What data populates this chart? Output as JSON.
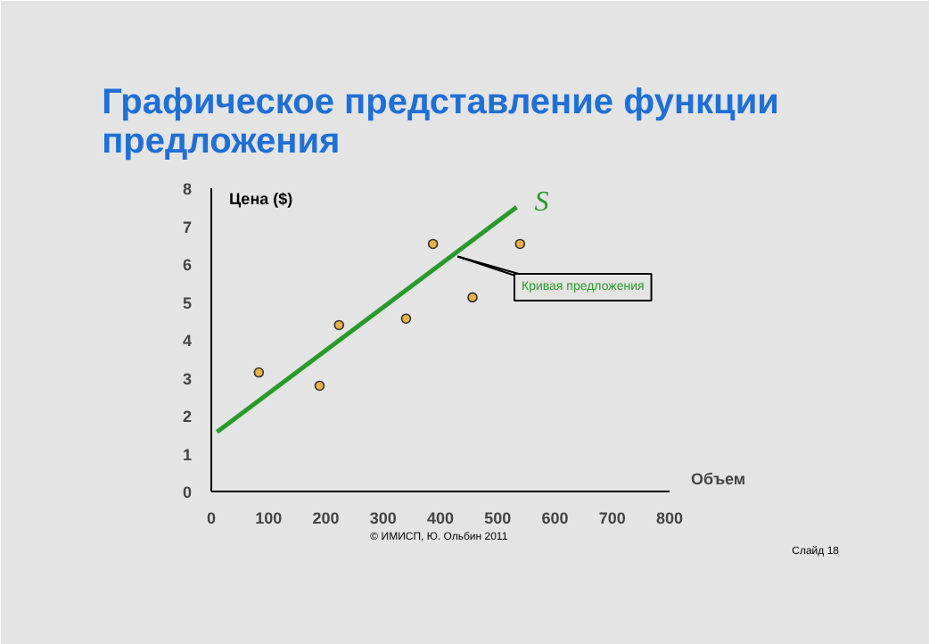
{
  "chart_data": {
    "type": "scatter",
    "title": "Графическое представление функции\nпредложения",
    "xlabel": "Объем",
    "ylabel": "Цена ($)",
    "xlim": [
      0,
      800
    ],
    "xticks": [
      0,
      100,
      200,
      300,
      400,
      500,
      600,
      700,
      800
    ],
    "ylim": [
      0,
      8
    ],
    "yticks": [
      0,
      1,
      2,
      3,
      4,
      5,
      6,
      7,
      8
    ],
    "series": [
      {
        "type": "line",
        "name": "S",
        "color": "#2a9a2a",
        "marker": "none",
        "x": [
          10,
          533
        ],
        "values": [
          1.57,
          7.5
        ]
      },
      {
        "color": "#e8b04a",
        "marker": "circle",
        "x": [
          83,
          189,
          223,
          340,
          387,
          456,
          539
        ],
        "values": [
          3.14,
          2.79,
          4.39,
          4.56,
          6.53,
          5.12,
          6.53
        ]
      }
    ],
    "annotations": [
      {
        "text": "Кривая предложения",
        "x": 430,
        "y": 6.2
      },
      "© ИМИСП, Ю. Ольбин  2011",
      "Слайд 18"
    ]
  }
}
